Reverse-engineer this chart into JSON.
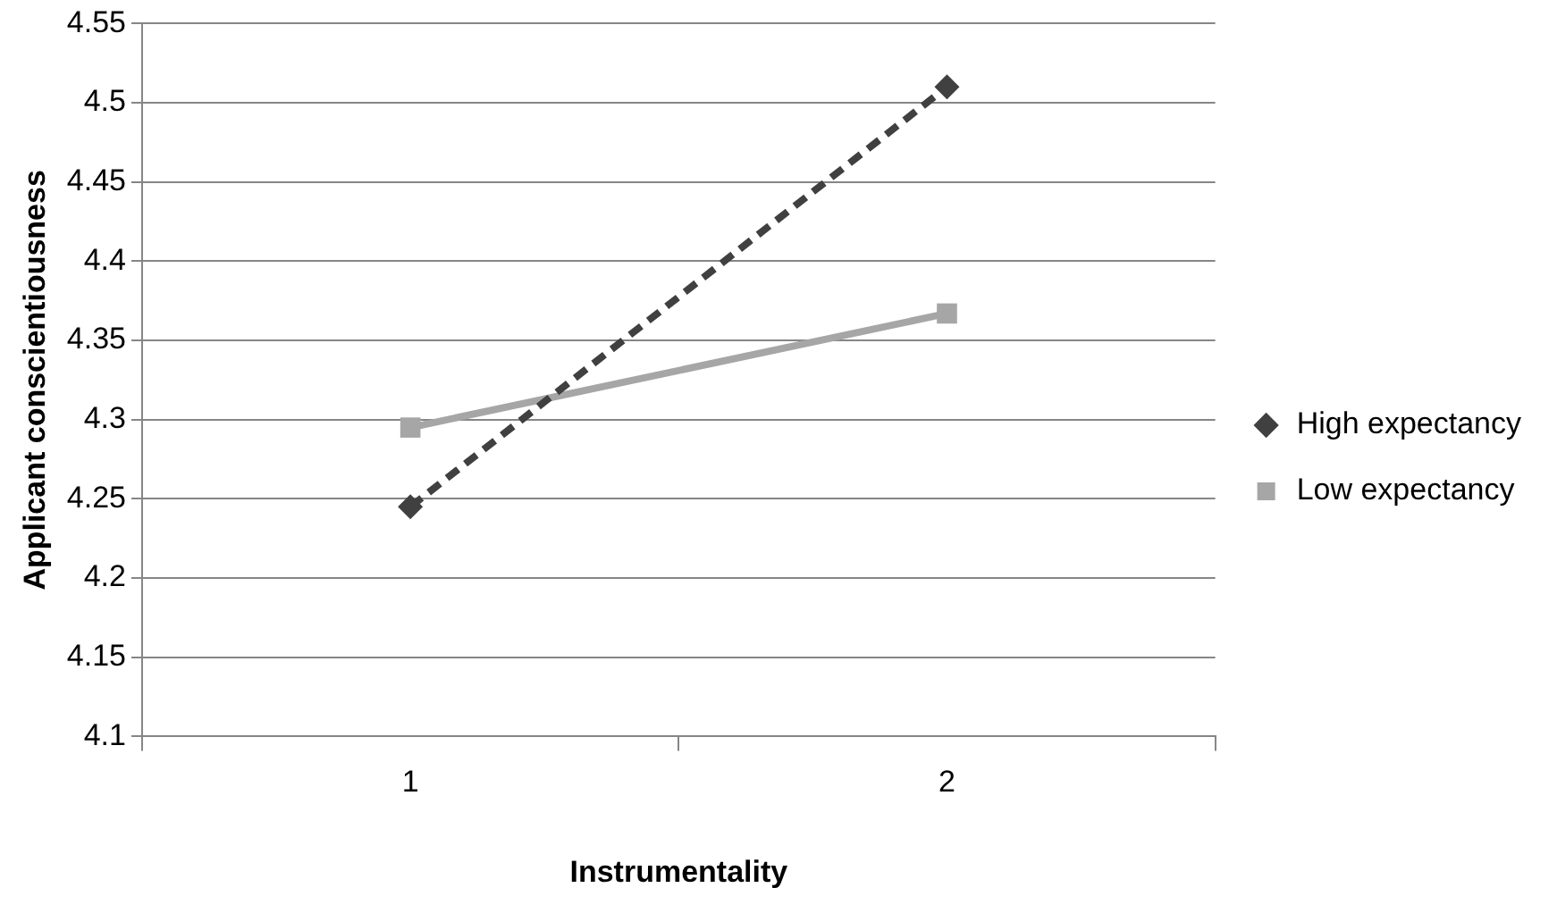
{
  "chart_data": {
    "type": "line",
    "xlabel": "Instrumentality",
    "ylabel": "Applicant conscientiousness",
    "categories": [
      "1",
      "2"
    ],
    "series": [
      {
        "name": "High expectancy",
        "color": "#404040",
        "values": [
          4.245,
          4.51
        ],
        "marker": "diamond",
        "line_style": "dashed"
      },
      {
        "name": "Low expectancy",
        "color": "#a6a6a6",
        "values": [
          4.295,
          4.367
        ],
        "marker": "square",
        "line_style": "solid"
      }
    ],
    "ylim": [
      4.1,
      4.55
    ],
    "yticks": [
      4.1,
      4.15,
      4.2,
      4.25,
      4.3,
      4.35,
      4.4,
      4.45,
      4.5,
      4.55
    ],
    "grid": "y",
    "legend": "right"
  }
}
